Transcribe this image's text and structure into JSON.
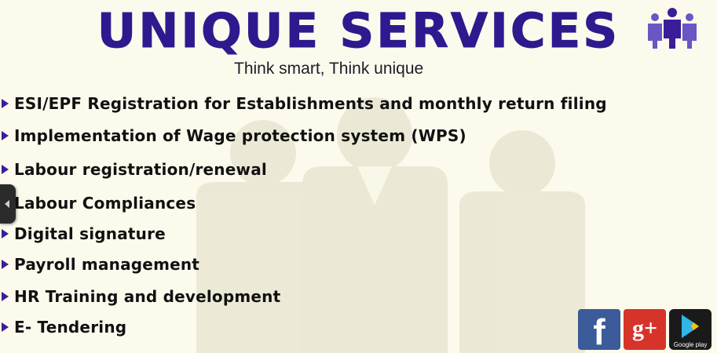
{
  "header": {
    "title": "UNIQUE SERVICES",
    "tagline": "Think smart, Think unique",
    "logo_icon": "people-group-icon"
  },
  "services": [
    {
      "label": "ESI/EPF Registration for Establishments and monthly return filing"
    },
    {
      "label": "Implementation of Wage protection system (WPS)"
    },
    {
      "label": "Labour registration/renewal"
    },
    {
      "label": "Labour Compliances"
    },
    {
      "label": "Digital signature"
    },
    {
      "label": "Payroll management"
    },
    {
      "label": "HR Training and development"
    },
    {
      "label": "E- Tendering"
    }
  ],
  "social": {
    "facebook": {
      "icon": "facebook-icon",
      "glyph": "f"
    },
    "google_plus": {
      "icon": "google-plus-icon",
      "glyph": "g+"
    },
    "google_play": {
      "icon": "google-play-icon",
      "label": "Google play"
    }
  },
  "colors": {
    "background": "#fbfaec",
    "title": "#2e1a8e",
    "bullet": "#3a1e99",
    "facebook": "#3b5b9a",
    "google_plus": "#d6342a"
  }
}
